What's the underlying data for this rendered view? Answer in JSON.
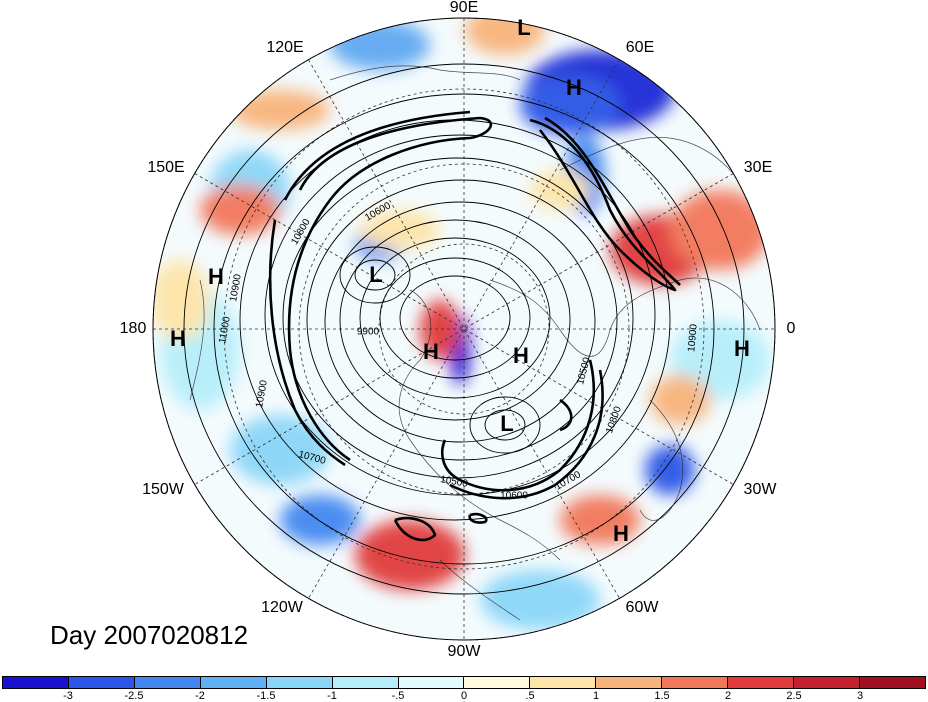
{
  "title": "Day 2007020812",
  "longitude_labels": [
    "90E",
    "60E",
    "30E",
    "0",
    "30W",
    "60W",
    "90W",
    "120W",
    "150W",
    "180",
    "150E",
    "120E"
  ],
  "pressure_centers": [
    "L",
    "H",
    "H",
    "H",
    "L",
    "H",
    "H",
    "L",
    "H",
    "H"
  ],
  "contour_labels": [
    "10900",
    "11000",
    "10900",
    "9900",
    "10500",
    "10700",
    "10500",
    "10600",
    "10700",
    "10800",
    "10900",
    "10600",
    "10800"
  ],
  "colorbar": {
    "ticks": [
      "-3",
      "-2.5",
      "-2",
      "-1.5",
      "-1",
      "-.5",
      "0",
      ".5",
      "1",
      "1.5",
      "2",
      "2.5",
      "3"
    ],
    "colors": [
      "#1a10d0",
      "#2b55e6",
      "#4287f0",
      "#5fb0f5",
      "#8ad6f8",
      "#b5eefa",
      "#e2fbfd",
      "#fffadc",
      "#fde4a8",
      "#f8b37a",
      "#f2775a",
      "#e13a3a",
      "#c4202e",
      "#a00e20"
    ]
  }
}
